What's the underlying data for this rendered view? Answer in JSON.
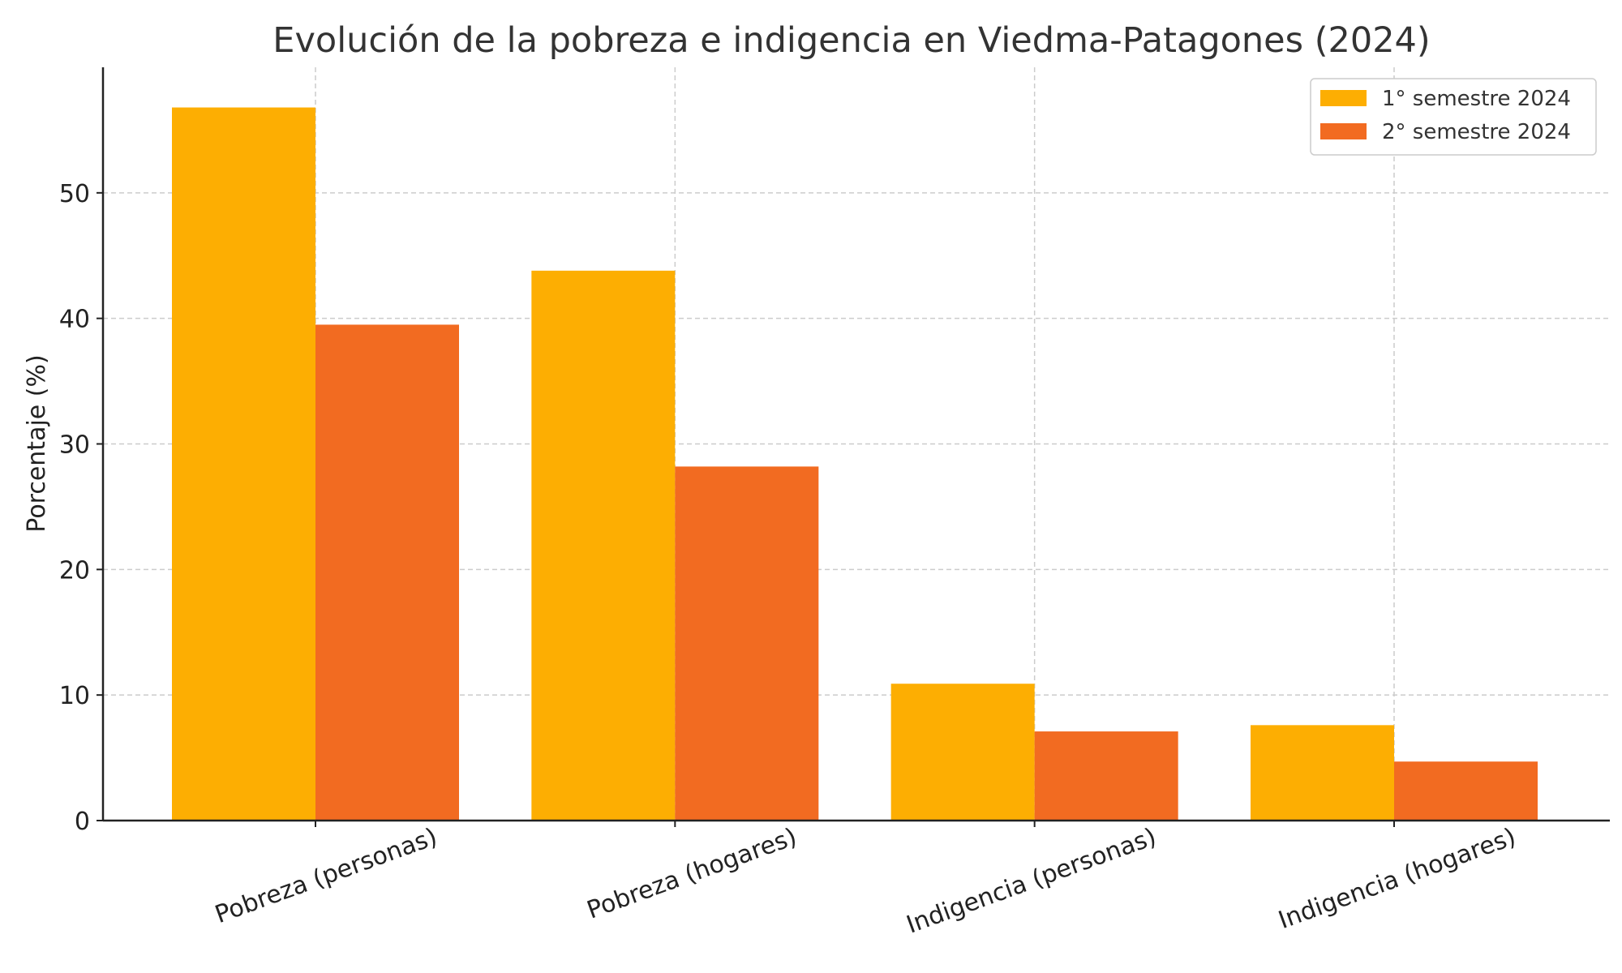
{
  "chart_data": {
    "type": "bar",
    "title": "Evolución de la pobreza e indigencia en Viedma-Patagones (2024)",
    "xlabel": "",
    "ylabel": "Porcentaje (%)",
    "categories": [
      "Pobreza (personas)",
      "Pobreza (hogares)",
      "Indigencia (personas)",
      "Indigencia (hogares)"
    ],
    "series": [
      {
        "name": "1° semestre 2024",
        "color": "#FDAE02",
        "values": [
          56.8,
          43.8,
          10.9,
          7.6
        ]
      },
      {
        "name": "2° semestre 2024",
        "color": "#F26B21",
        "values": [
          39.5,
          28.2,
          7.1,
          4.7
        ]
      }
    ],
    "yticks": [
      0,
      10,
      20,
      30,
      40,
      50
    ],
    "ylim": [
      0,
      60
    ],
    "grid": true,
    "legend_position": "top-right"
  }
}
